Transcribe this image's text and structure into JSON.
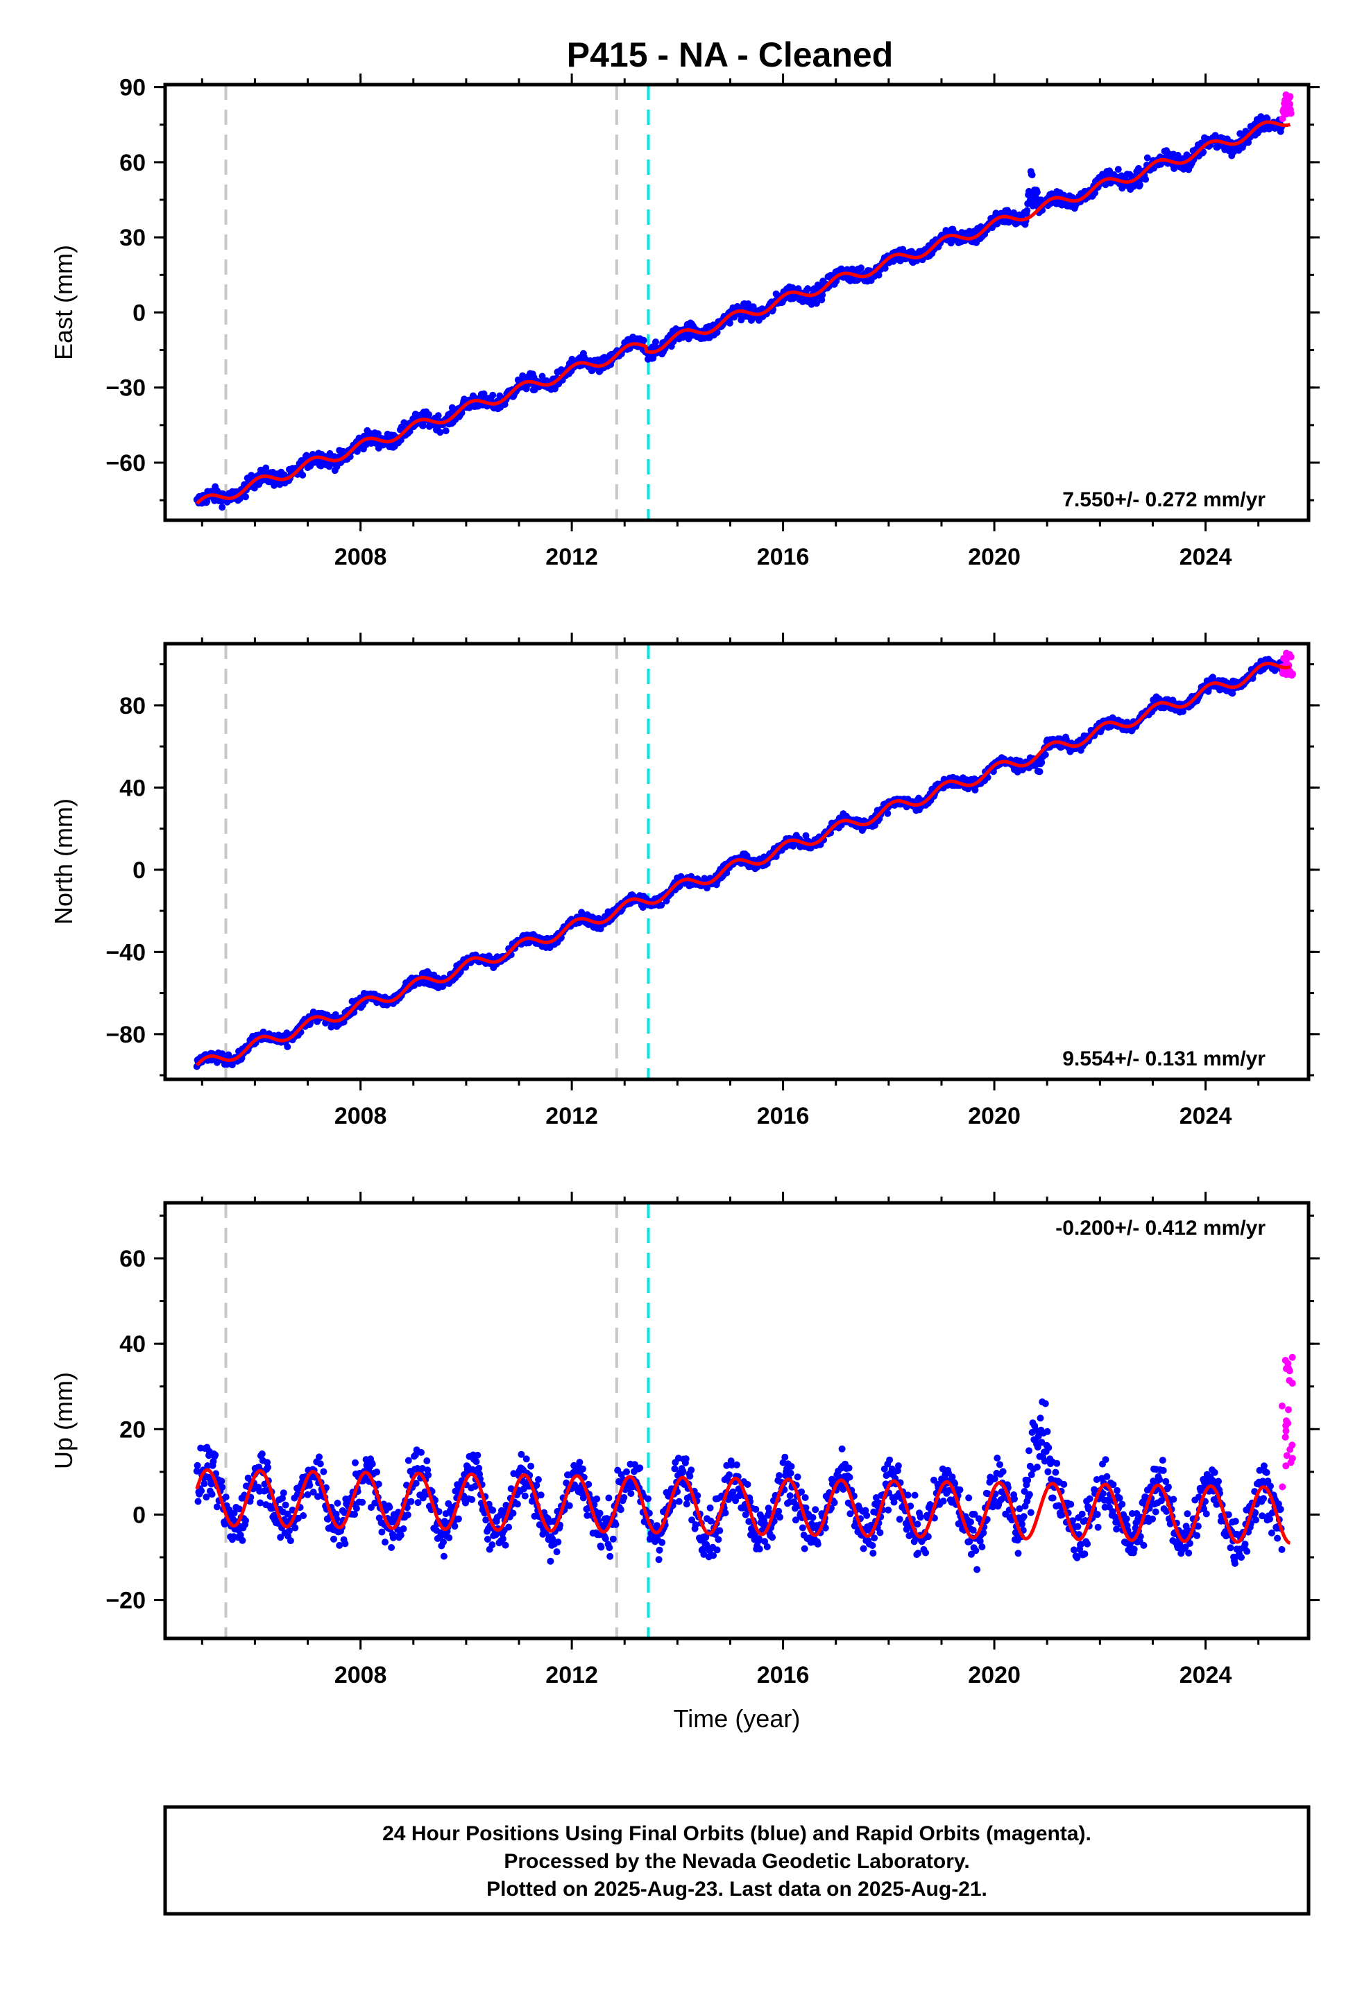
{
  "colors": {
    "final_orbits": "#0000ff",
    "rapid_orbits": "#ff00ff",
    "model_fit": "#ff0000",
    "equipment_change": "#c8c8c8",
    "earthquake": "#00e6e6"
  },
  "chart_data": [
    {
      "type": "scatter",
      "panel": "east",
      "title": "P415  - NA - Cleaned",
      "ylabel": "East (mm)",
      "xlabel": "",
      "xlim": [
        2004.3,
        2025.95
      ],
      "ylim": [
        -83,
        91
      ],
      "xticks": [
        2008,
        2012,
        2016,
        2020,
        2024
      ],
      "yticks": [
        -60,
        -30,
        0,
        30,
        60,
        90
      ],
      "ytick_labels": [
        "−60",
        "−30",
        "0",
        "30",
        "60",
        "90"
      ],
      "rate_text": "7.550+/- 0.272 mm/yr",
      "rate_position": "bottom-right",
      "model": {
        "start": 2004.9,
        "end": 2025.6,
        "y0": -77,
        "rate": 7.55,
        "annual_amp": 2.2,
        "offset_at": 2013.4,
        "offset": -2
      },
      "anomalies": [
        {
          "from": 2020.6,
          "to": 2020.85,
          "add": 14
        }
      ],
      "rapid": {
        "from": 2025.45,
        "to": 2025.65,
        "min": 77,
        "max": 88
      },
      "scatter": 2.8
    },
    {
      "type": "scatter",
      "panel": "north",
      "title": "",
      "ylabel": "North (mm)",
      "xlabel": "",
      "xlim": [
        2004.3,
        2025.95
      ],
      "ylim": [
        -102,
        110
      ],
      "xticks": [
        2008,
        2012,
        2016,
        2020,
        2024
      ],
      "yticks": [
        -80,
        -40,
        0,
        40,
        80
      ],
      "ytick_labels": [
        "−80",
        "−40",
        "0",
        "40",
        "80"
      ],
      "rate_text": "9.554+/- 0.131 mm/yr",
      "rate_position": "bottom-right",
      "model": {
        "start": 2004.9,
        "end": 2025.6,
        "y0": -96,
        "rate": 9.554,
        "annual_amp": 3.0,
        "offset_at": 2013.4,
        "offset": 0
      },
      "anomalies": [
        {
          "from": 2020.75,
          "to": 2020.95,
          "add": -8
        }
      ],
      "rapid": {
        "from": 2025.45,
        "to": 2025.65,
        "min": 94,
        "max": 106
      },
      "scatter": 2.5
    },
    {
      "type": "scatter",
      "panel": "up",
      "title": "",
      "ylabel": "Up (mm)",
      "xlabel": "Time (year)",
      "xlim": [
        2004.3,
        2025.95
      ],
      "ylim": [
        -29,
        73
      ],
      "xticks": [
        2008,
        2012,
        2016,
        2020,
        2024
      ],
      "yticks": [
        -20,
        0,
        20,
        40,
        60
      ],
      "ytick_labels": [
        "−20",
        "0",
        "20",
        "40",
        "60"
      ],
      "rate_text": "-0.200+/- 0.412 mm/yr",
      "rate_position": "top-right",
      "model": {
        "start": 2004.9,
        "end": 2025.6,
        "y0": 4,
        "rate": -0.2,
        "annual_amp": 6.5,
        "offset_at": 2013.4,
        "offset": 0
      },
      "anomalies": [
        {
          "from": 2020.5,
          "to": 2021.1,
          "add": 22
        }
      ],
      "rapid": {
        "from": 2025.45,
        "to": 2025.65,
        "min": 4,
        "max": 39
      },
      "scatter": 5.5
    }
  ],
  "vertical_lines": [
    {
      "x": 2005.45,
      "kind": "equipment_change"
    },
    {
      "x": 2012.85,
      "kind": "equipment_change"
    },
    {
      "x": 2013.45,
      "kind": "earthquake"
    }
  ],
  "caption": {
    "line1": "24 Hour Positions Using Final Orbits (blue) and Rapid Orbits (magenta).",
    "line2": "Processed by the Nevada Geodetic Laboratory.",
    "line3": "Plotted on 2025-Aug-23. Last data on 2025-Aug-21."
  }
}
